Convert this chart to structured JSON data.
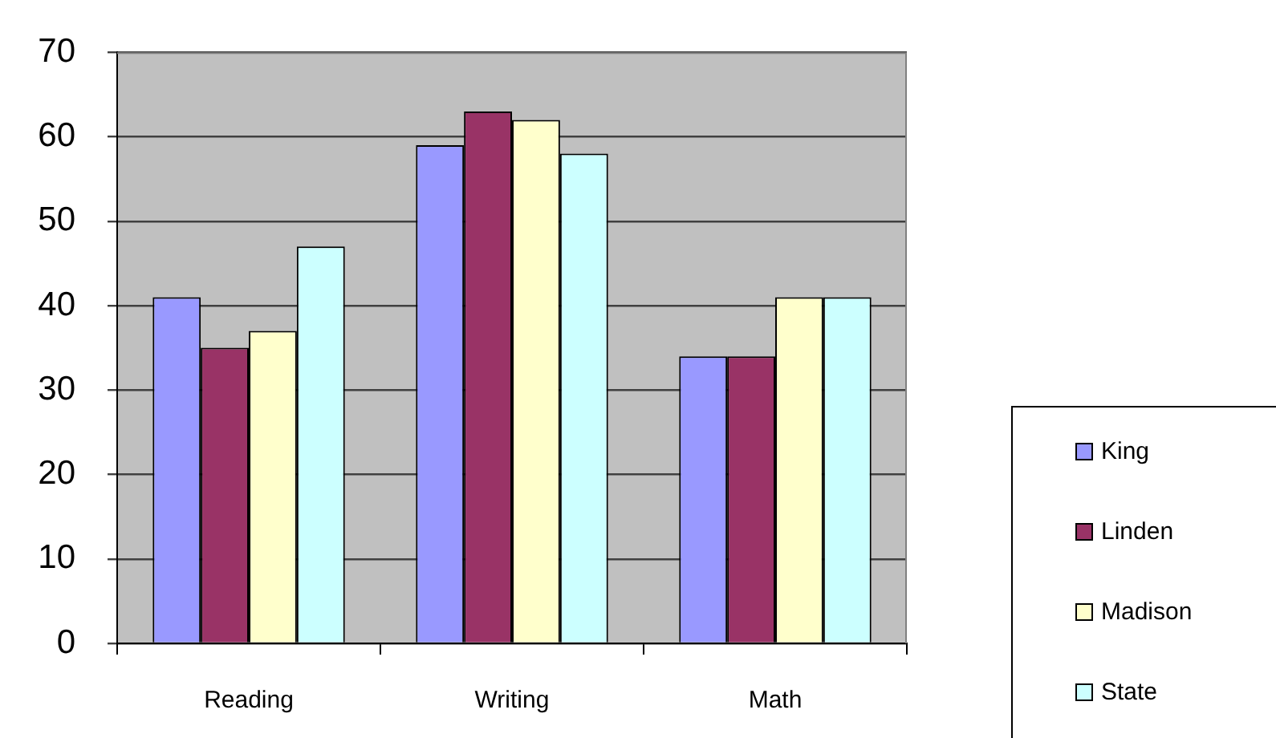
{
  "chart_data": {
    "type": "bar",
    "categories": [
      "Reading",
      "Writing",
      "Math"
    ],
    "series": [
      {
        "name": "King",
        "color": "#9999ff",
        "values": [
          41,
          59,
          34
        ]
      },
      {
        "name": "Linden",
        "color": "#993366",
        "values": [
          35,
          63,
          34
        ]
      },
      {
        "name": "Madison",
        "color": "#ffffcc",
        "values": [
          37,
          62,
          41
        ]
      },
      {
        "name": "State",
        "color": "#ccffff",
        "values": [
          47,
          58,
          41
        ]
      }
    ],
    "ylim": [
      0,
      70
    ],
    "yticks": [
      0,
      10,
      20,
      30,
      40,
      50,
      60,
      70
    ],
    "grid": "y",
    "legend": "right"
  }
}
